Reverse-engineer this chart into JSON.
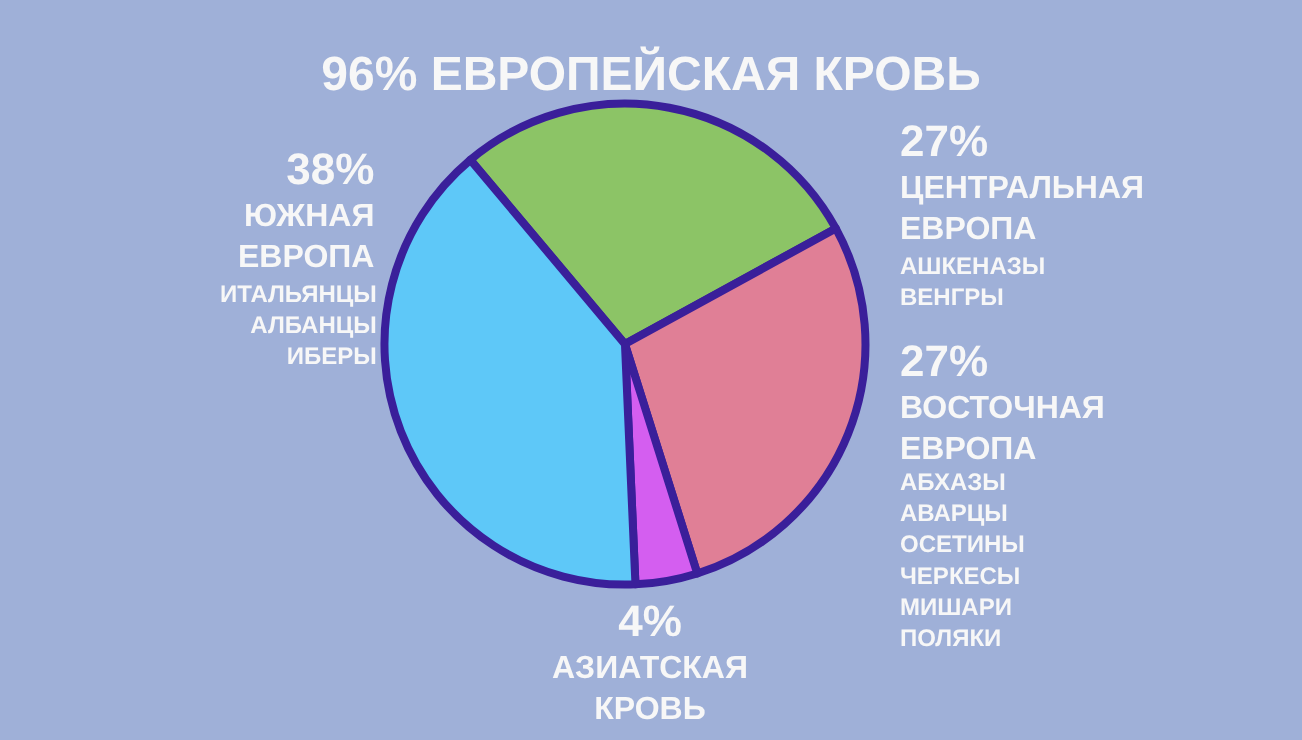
{
  "chart_data": {
    "type": "pie",
    "title": "96% ЕВРОПЕЙСКАЯ КРОВЬ",
    "categories": [
      "ЦЕНТРАЛЬНАЯ ЕВРОПА",
      "ВОСТОЧНАЯ ЕВРОПА",
      "АЗИАТСКАЯ КРОВЬ",
      "ЮЖНАЯ ЕВРОПА"
    ],
    "values": [
      27,
      27,
      4,
      38
    ],
    "value_labels": [
      "27%",
      "27%",
      "4%",
      "38%"
    ],
    "colors": [
      "#8cc466",
      "#e07f96",
      "#d45ef0",
      "#5ec8f8"
    ],
    "annotations": [
      "АШКЕНАЗЫ\nВЕНГРЫ",
      "АБХАЗЫ\nАВАРЦЫ\nОСЕТИНЫ\nЧЕРКЕСЫ\nМИШАРИ\nПОЛЯКИ",
      null,
      "ИТАЛЬЯНЦЫ\nАЛБАНЦЫ\nИБЕРЫ"
    ],
    "legend": false
  }
}
